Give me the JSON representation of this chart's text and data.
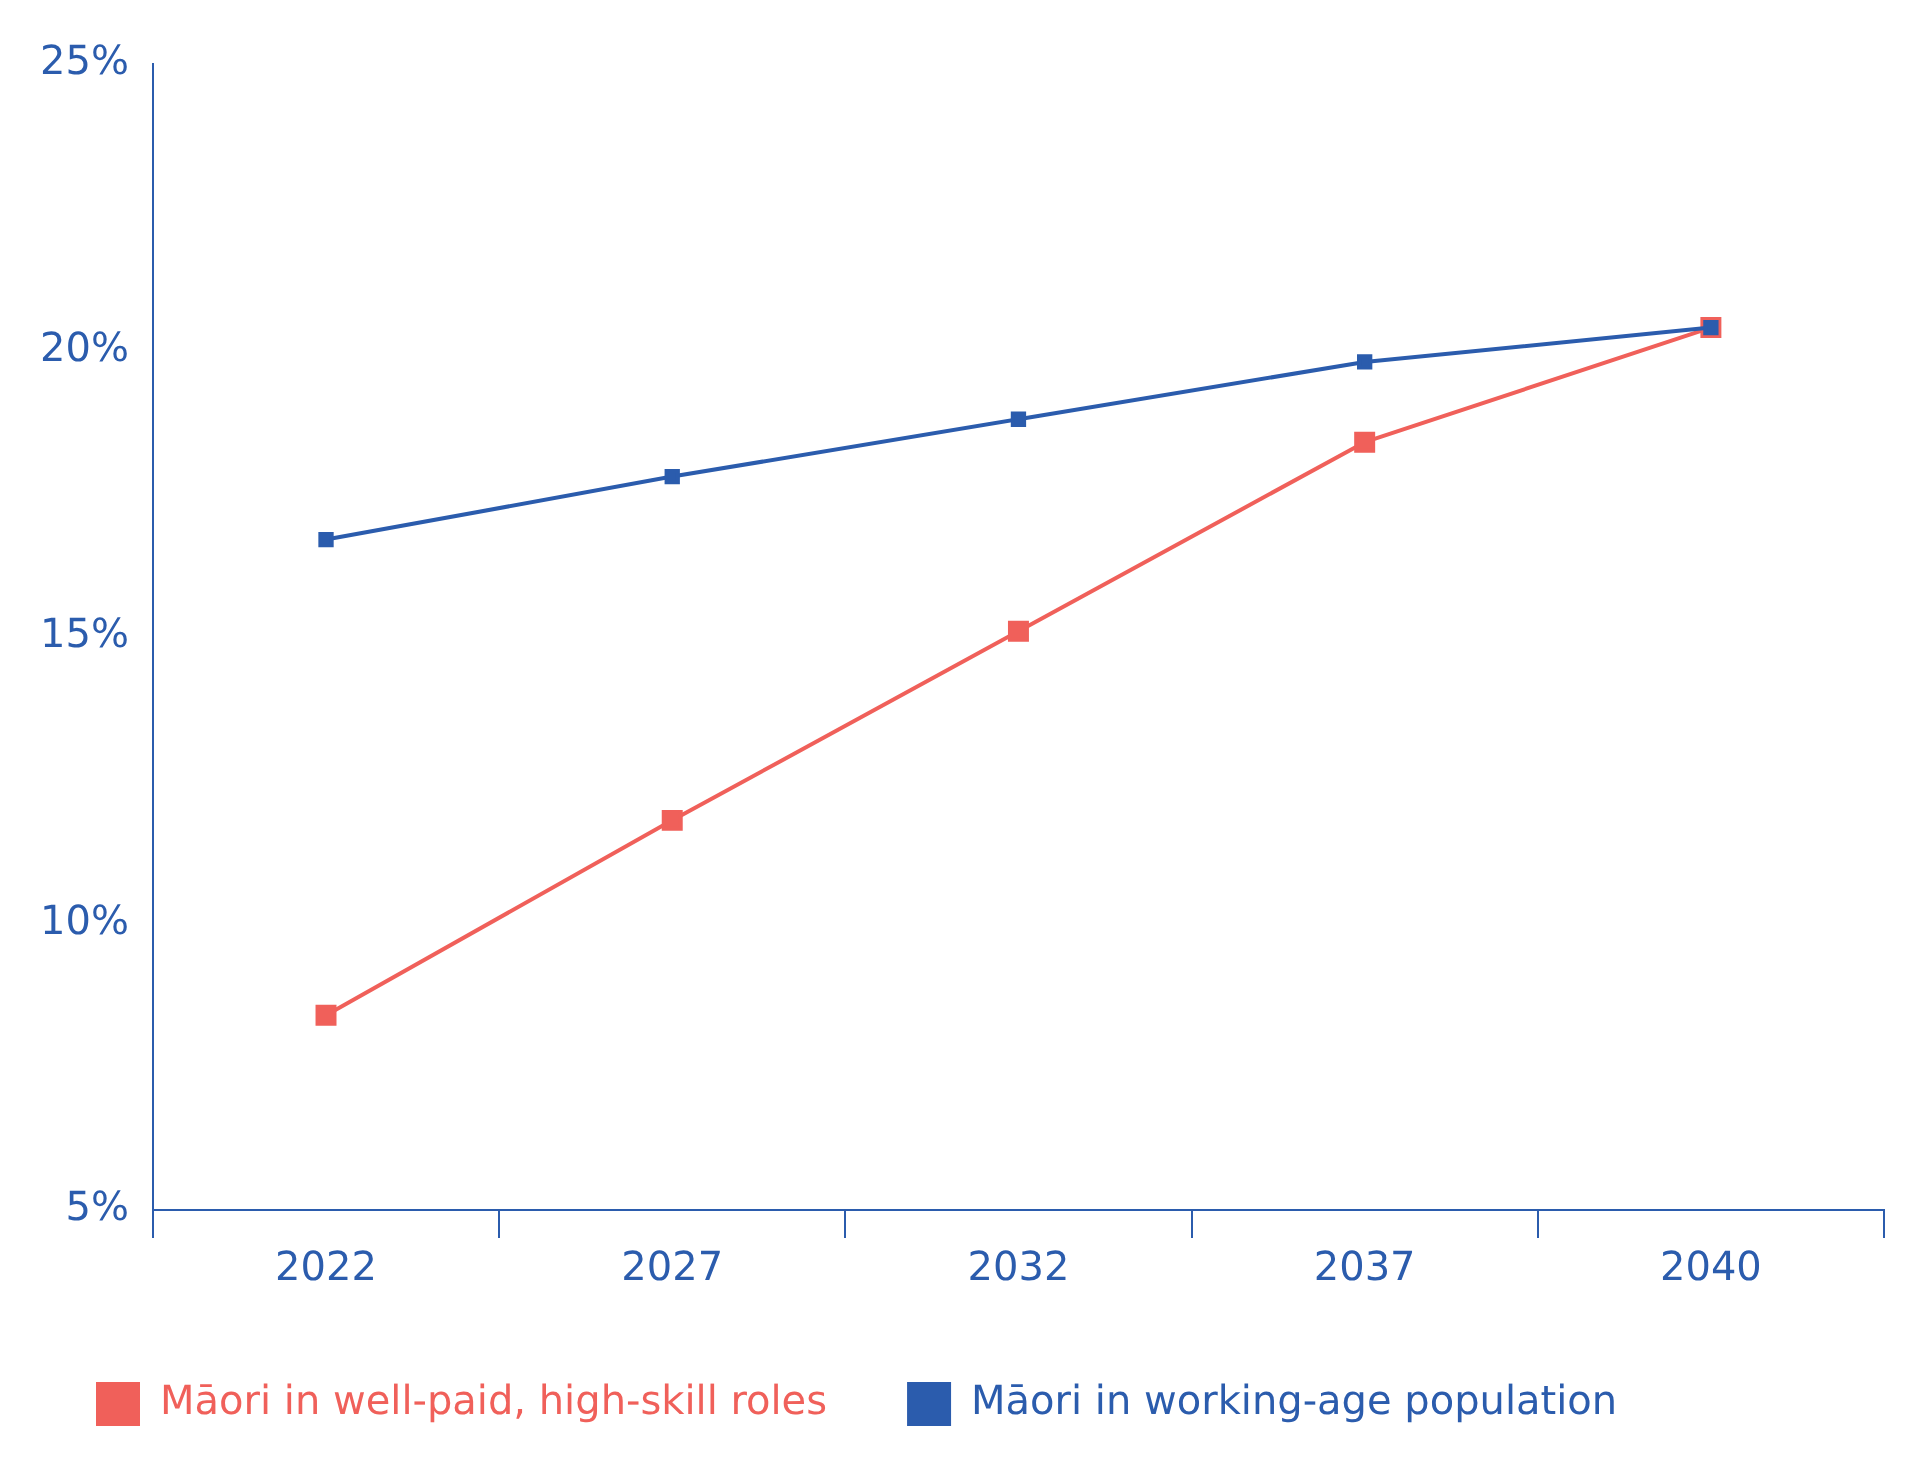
{
  "chart_data": {
    "type": "line",
    "categories": [
      "2022",
      "2027",
      "2032",
      "2037",
      "2040"
    ],
    "series": [
      {
        "name": "Māori in well-paid, high-skill roles",
        "color": "#f0605a",
        "values": [
          8.4,
          11.8,
          15.1,
          18.4,
          20.4
        ]
      },
      {
        "name": "Māori in working-age population",
        "color": "#2b5cad",
        "values": [
          16.7,
          17.8,
          18.8,
          19.8,
          20.4
        ]
      }
    ],
    "ylim": [
      5,
      25
    ],
    "yticks": [
      {
        "value": 5,
        "label": "5%"
      },
      {
        "value": 10,
        "label": "10%"
      },
      {
        "value": 15,
        "label": "15%"
      },
      {
        "value": 20,
        "label": "20%"
      },
      {
        "value": 25,
        "label": "25%"
      }
    ],
    "grid": false,
    "legend": "bottom",
    "marker": "square",
    "line_style": "solid"
  }
}
